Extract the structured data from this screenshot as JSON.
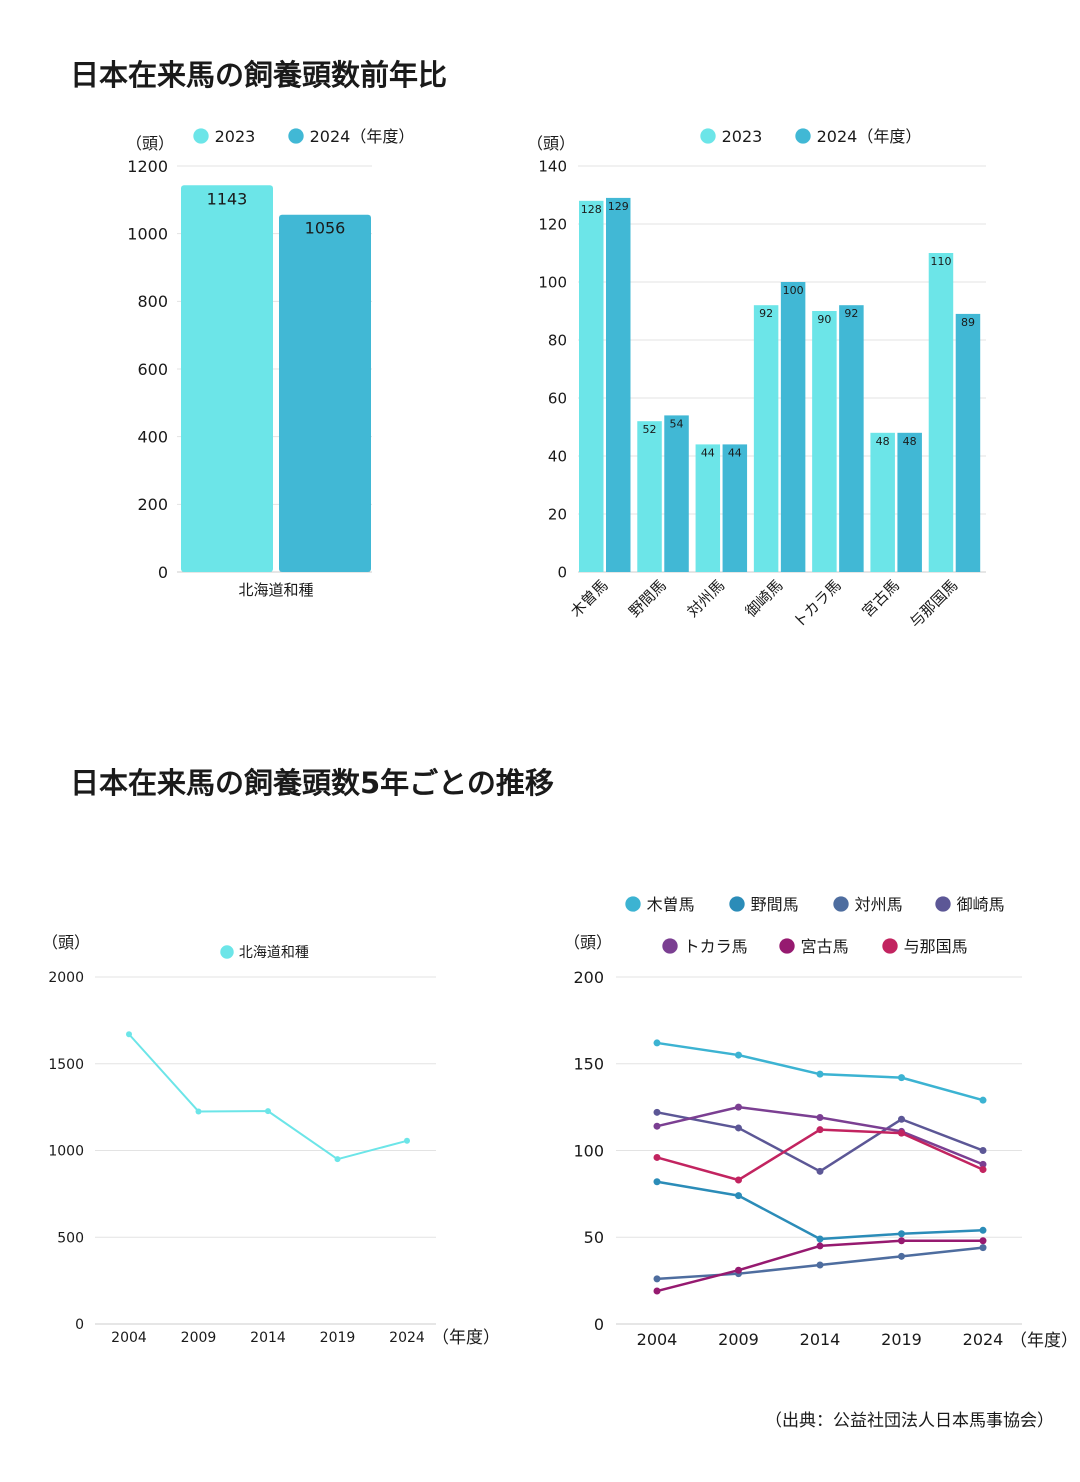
{
  "titles": {
    "section1": "日本在来馬の飼養頭数前年比",
    "section2": "日本在来馬の飼養頭数5年ごとの推移"
  },
  "source": "（出典：公益社団法人日本馬事協会）",
  "colors": {
    "c2023": "#6ce5e8",
    "c2024": "#41b8d5",
    "grid": "#e3e3e3",
    "axis": "#cccccc"
  },
  "chart_data": [
    {
      "id": "hokkaido-yoy",
      "type": "bar",
      "categories": [
        "北海道和種"
      ],
      "series": [
        {
          "name": "2023",
          "values": [
            1143
          ]
        },
        {
          "name": "2024（年度）",
          "values": [
            1056
          ]
        }
      ],
      "ylabel": "（頭）",
      "ylim": [
        0,
        1200
      ],
      "yticks": [
        0,
        200,
        400,
        600,
        800,
        1000,
        1200
      ],
      "grid": true,
      "legend": "top"
    },
    {
      "id": "breeds-yoy",
      "type": "bar",
      "categories": [
        "木曽馬",
        "野間馬",
        "対州馬",
        "御崎馬",
        "トカラ馬",
        "宮古馬",
        "与那国馬"
      ],
      "series": [
        {
          "name": "2023",
          "values": [
            128,
            52,
            44,
            92,
            90,
            48,
            110
          ]
        },
        {
          "name": "2024（年度）",
          "values": [
            129,
            54,
            44,
            100,
            92,
            48,
            89
          ]
        }
      ],
      "ylabel": "（頭）",
      "ylim": [
        0,
        140
      ],
      "yticks": [
        0,
        20,
        40,
        60,
        80,
        100,
        120,
        140
      ],
      "grid": true,
      "legend": "top"
    },
    {
      "id": "hokkaido-trend",
      "type": "line",
      "x": [
        "2004",
        "2009",
        "2014",
        "2019",
        "2024"
      ],
      "xunit": "（年度）",
      "series": [
        {
          "name": "北海道和種",
          "values": [
            1670,
            1225,
            1227,
            950,
            1056
          ],
          "color": "#6ce5e8"
        }
      ],
      "ylabel": "（頭）",
      "ylim": [
        0,
        2000
      ],
      "yticks": [
        0,
        500,
        1000,
        1500,
        2000
      ],
      "grid": true,
      "legend": "top"
    },
    {
      "id": "breeds-trend",
      "type": "line",
      "x": [
        "2004",
        "2009",
        "2014",
        "2019",
        "2024"
      ],
      "xunit": "（年度）",
      "series": [
        {
          "name": "木曽馬",
          "values": [
            162,
            155,
            144,
            142,
            129
          ],
          "color": "#3cb3d2"
        },
        {
          "name": "野間馬",
          "values": [
            82,
            74,
            49,
            52,
            54
          ],
          "color": "#2b8cb8"
        },
        {
          "name": "対州馬",
          "values": [
            26,
            29,
            34,
            39,
            44
          ],
          "color": "#4e6d9f"
        },
        {
          "name": "御崎馬",
          "values": [
            122,
            113,
            88,
            118,
            100
          ],
          "color": "#5c5796"
        },
        {
          "name": "トカラ馬",
          "values": [
            114,
            125,
            119,
            111,
            92
          ],
          "color": "#7b3f92"
        },
        {
          "name": "宮古馬",
          "values": [
            19,
            31,
            45,
            48,
            48
          ],
          "color": "#961a70"
        },
        {
          "name": "与那国馬",
          "values": [
            96,
            83,
            112,
            110,
            89
          ],
          "color": "#c22460"
        }
      ],
      "ylabel": "（頭）",
      "ylim": [
        0,
        200
      ],
      "yticks": [
        0,
        50,
        100,
        150,
        200
      ],
      "grid": true,
      "legend": "top"
    }
  ]
}
